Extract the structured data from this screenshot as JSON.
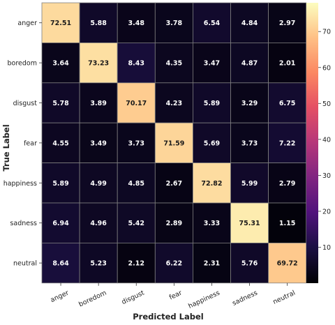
{
  "chart_data": {
    "type": "heatmap",
    "xlabel": "Predicted Label",
    "ylabel": "True Label",
    "x_categories": [
      "anger",
      "boredom",
      "disgust",
      "fear",
      "happiness",
      "sadness",
      "neutral"
    ],
    "y_categories": [
      "anger",
      "boredom",
      "disgust",
      "fear",
      "happiness",
      "sadness",
      "neutral"
    ],
    "values": [
      [
        72.51,
        5.88,
        3.48,
        3.78,
        6.54,
        4.84,
        2.97
      ],
      [
        3.64,
        73.23,
        8.43,
        4.35,
        3.47,
        4.87,
        2.01
      ],
      [
        5.78,
        3.89,
        70.17,
        4.23,
        5.89,
        3.29,
        6.75
      ],
      [
        4.55,
        3.49,
        3.73,
        71.59,
        5.69,
        3.73,
        7.22
      ],
      [
        5.89,
        4.99,
        4.85,
        2.67,
        72.82,
        5.99,
        2.79
      ],
      [
        6.94,
        4.96,
        5.42,
        2.89,
        3.33,
        75.31,
        1.15
      ],
      [
        8.64,
        5.23,
        2.12,
        6.22,
        2.31,
        5.76,
        69.72
      ]
    ],
    "colorbar": {
      "colormap": "magma",
      "range": [
        0,
        78
      ],
      "ticks": [
        10,
        20,
        30,
        40,
        50,
        60,
        70
      ]
    },
    "grid": true
  }
}
